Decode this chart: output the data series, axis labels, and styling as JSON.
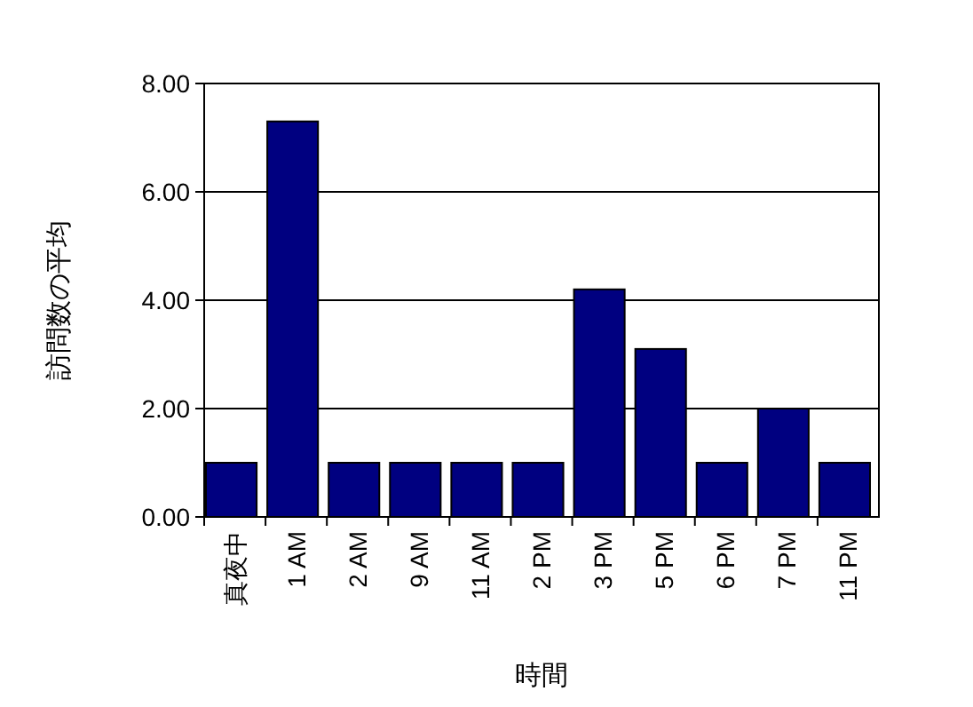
{
  "chart_data": {
    "type": "bar",
    "xlabel": "時間",
    "ylabel": "訪問数の平均",
    "categories": [
      "真夜中",
      "1 AM",
      "2 AM",
      "9 AM",
      "11 AM",
      "2 PM",
      "3 PM",
      "5 PM",
      "6 PM",
      "7 PM",
      "11 PM"
    ],
    "values": [
      1,
      7.3,
      1,
      1,
      1,
      1,
      4.2,
      3.1,
      1,
      2.0,
      1
    ],
    "color": "#000080",
    "ylim": [
      0,
      8
    ],
    "yticks": [
      {
        "value": 0,
        "label": "0.00"
      },
      {
        "value": 2,
        "label": "2.00"
      },
      {
        "value": 4,
        "label": "4.00"
      },
      {
        "value": 6,
        "label": "6.00"
      },
      {
        "value": 8,
        "label": "8.00"
      }
    ],
    "grid": "y"
  }
}
